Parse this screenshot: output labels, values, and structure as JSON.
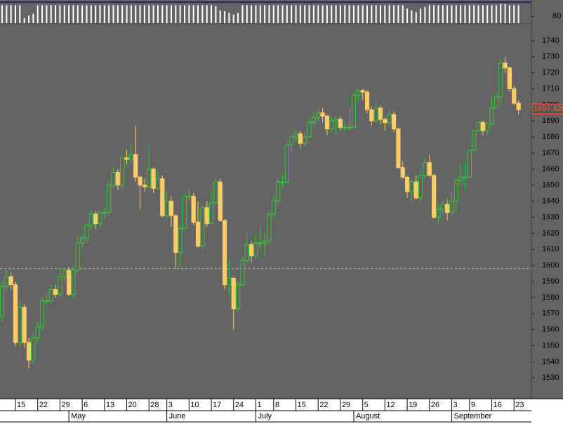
{
  "chart_data": {
    "type": "candlestick",
    "open": [
      1568,
      1587,
      1593,
      1588,
      1552,
      1574,
      1552,
      1541,
      1555,
      1562,
      1578,
      1578,
      1585,
      1582,
      1593,
      1597,
      1582,
      1597,
      1614,
      1617,
      1625,
      1632,
      1626,
      1633,
      1633,
      1650,
      1658,
      1650,
      1667,
      1666,
      1669,
      1655,
      1650,
      1649,
      1660,
      1648,
      1654,
      1631,
      1640,
      1631,
      1608,
      1623,
      1643,
      1643,
      1627,
      1612,
      1636,
      1626,
      1639,
      1652,
      1628,
      1588,
      1592,
      1573,
      1588,
      1603,
      1613,
      1606,
      1614,
      1614,
      1615,
      1632,
      1640,
      1652,
      1652,
      1675,
      1680,
      1682,
      1676,
      1680,
      1689,
      1692,
      1695,
      1693,
      1685,
      1690,
      1691,
      1686,
      1686,
      1686,
      1706,
      1709,
      1708,
      1697,
      1690,
      1698,
      1691,
      1689,
      1694,
      1685,
      1661,
      1655,
      1646,
      1652,
      1642,
      1656,
      1664,
      1656,
      1630,
      1635,
      1638,
      1633,
      1640,
      1653,
      1655,
      1655,
      1672,
      1684,
      1689,
      1684,
      1688,
      1698,
      1705,
      1726,
      1723,
      1710,
      1701
    ],
    "high": [
      1590,
      1597,
      1596,
      1590,
      1577,
      1576,
      1555,
      1558,
      1565,
      1580,
      1582,
      1588,
      1588,
      1597,
      1598,
      1599,
      1599,
      1618,
      1619,
      1626,
      1635,
      1634,
      1634,
      1636,
      1652,
      1661,
      1660,
      1668,
      1672,
      1675,
      1687,
      1656,
      1654,
      1674,
      1661,
      1659,
      1656,
      1646,
      1643,
      1632,
      1625,
      1645,
      1648,
      1645,
      1640,
      1637,
      1640,
      1646,
      1655,
      1654,
      1629,
      1604,
      1593,
      1590,
      1605,
      1621,
      1615,
      1619,
      1624,
      1620,
      1634,
      1644,
      1654,
      1656,
      1676,
      1681,
      1685,
      1684,
      1683,
      1693,
      1695,
      1698,
      1698,
      1694,
      1693,
      1693,
      1693,
      1690,
      1698,
      1708,
      1711,
      1710,
      1709,
      1699,
      1702,
      1700,
      1692,
      1697,
      1696,
      1686,
      1665,
      1656,
      1654,
      1656,
      1660,
      1667,
      1669,
      1657,
      1638,
      1641,
      1641,
      1646,
      1654,
      1663,
      1664,
      1672,
      1684,
      1689,
      1690,
      1689,
      1705,
      1707,
      1729,
      1730,
      1724,
      1712,
      1703
    ],
    "low": [
      1565,
      1584,
      1585,
      1550,
      1549,
      1549,
      1536,
      1539,
      1552,
      1560,
      1575,
      1576,
      1580,
      1580,
      1590,
      1581,
      1580,
      1596,
      1611,
      1614,
      1622,
      1623,
      1624,
      1629,
      1631,
      1648,
      1647,
      1648,
      1663,
      1664,
      1652,
      1635,
      1646,
      1648,
      1645,
      1647,
      1630,
      1629,
      1624,
      1598,
      1599,
      1622,
      1640,
      1625,
      1611,
      1610,
      1624,
      1625,
      1638,
      1627,
      1585,
      1580,
      1560,
      1571,
      1587,
      1602,
      1602,
      1604,
      1610,
      1605,
      1613,
      1630,
      1638,
      1648,
      1651,
      1670,
      1677,
      1673,
      1674,
      1679,
      1687,
      1690,
      1689,
      1681,
      1683,
      1680,
      1684,
      1683,
      1684,
      1685,
      1703,
      1703,
      1695,
      1687,
      1689,
      1688,
      1684,
      1687,
      1683,
      1660,
      1654,
      1642,
      1640,
      1641,
      1640,
      1654,
      1655,
      1629,
      1626,
      1632,
      1628,
      1631,
      1633,
      1650,
      1647,
      1655,
      1670,
      1683,
      1681,
      1681,
      1687,
      1698,
      1700,
      1720,
      1708,
      1700,
      1694
    ],
    "close": [
      1587,
      1593,
      1588,
      1552,
      1574,
      1552,
      1541,
      1555,
      1562,
      1578,
      1578,
      1585,
      1582,
      1593,
      1597,
      1582,
      1597,
      1614,
      1617,
      1625,
      1632,
      1626,
      1633,
      1633,
      1650,
      1658,
      1650,
      1667,
      1666,
      1669,
      1655,
      1650,
      1649,
      1660,
      1648,
      1654,
      1631,
      1640,
      1631,
      1608,
      1623,
      1643,
      1643,
      1627,
      1612,
      1636,
      1626,
      1639,
      1652,
      1628,
      1588,
      1592,
      1573,
      1588,
      1603,
      1613,
      1606,
      1614,
      1614,
      1615,
      1632,
      1640,
      1652,
      1652,
      1675,
      1680,
      1682,
      1676,
      1680,
      1689,
      1692,
      1695,
      1693,
      1685,
      1690,
      1691,
      1686,
      1686,
      1686,
      1706,
      1709,
      1708,
      1697,
      1690,
      1698,
      1691,
      1689,
      1694,
      1685,
      1661,
      1655,
      1646,
      1652,
      1642,
      1656,
      1664,
      1656,
      1630,
      1635,
      1638,
      1633,
      1640,
      1653,
      1655,
      1655,
      1672,
      1684,
      1689,
      1684,
      1688,
      1698,
      1705,
      1726,
      1723,
      1710,
      1701,
      1697
    ],
    "volume": [
      210,
      210,
      210,
      210,
      210,
      60,
      90,
      110,
      210,
      210,
      210,
      210,
      210,
      210,
      210,
      210,
      210,
      210,
      210,
      210,
      210,
      210,
      210,
      210,
      210,
      210,
      210,
      210,
      210,
      210,
      210,
      210,
      210,
      210,
      210,
      210,
      210,
      210,
      210,
      210,
      210,
      210,
      210,
      210,
      210,
      210,
      210,
      210,
      200,
      150,
      140,
      120,
      100,
      120,
      210,
      210,
      210,
      210,
      210,
      210,
      210,
      210,
      210,
      210,
      210,
      210,
      210,
      210,
      210,
      210,
      210,
      210,
      210,
      210,
      210,
      210,
      210,
      210,
      210,
      210,
      210,
      210,
      210,
      210,
      210,
      210,
      210,
      210,
      210,
      210,
      210,
      170,
      150,
      130,
      170,
      190,
      210,
      210,
      210,
      210,
      210,
      210,
      210,
      210,
      210,
      210,
      210,
      210,
      210,
      210,
      210,
      210,
      225,
      225,
      210,
      210,
      210
    ],
    "xlim": [
      -0.47,
      118.9
    ],
    "xticks": [
      {
        "value": 3,
        "label": "15"
      },
      {
        "value": 8,
        "label": "22"
      },
      {
        "value": 13,
        "label": "29"
      },
      {
        "value": 18,
        "label": "6"
      },
      {
        "value": 23,
        "label": "13"
      },
      {
        "value": 28,
        "label": "20"
      },
      {
        "value": 33,
        "label": "28"
      },
      {
        "value": 37,
        "label": "3"
      },
      {
        "value": 42,
        "label": "10"
      },
      {
        "value": 47,
        "label": "17"
      },
      {
        "value": 52,
        "label": "24"
      },
      {
        "value": 57,
        "label": "1"
      },
      {
        "value": 61,
        "label": "8"
      },
      {
        "value": 66,
        "label": "15"
      },
      {
        "value": 71,
        "label": "22"
      },
      {
        "value": 76,
        "label": "29"
      },
      {
        "value": 81,
        "label": "5"
      },
      {
        "value": 86,
        "label": "12"
      },
      {
        "value": 91,
        "label": "19"
      },
      {
        "value": 96,
        "label": "26"
      },
      {
        "value": 101,
        "label": "3"
      },
      {
        "value": 105,
        "label": "9"
      },
      {
        "value": 110,
        "label": "16"
      },
      {
        "value": 115,
        "label": "23"
      }
    ],
    "months": [
      {
        "value": 15,
        "label": "May"
      },
      {
        "value": 37,
        "label": "June"
      },
      {
        "value": 57,
        "label": "July"
      },
      {
        "value": 79,
        "label": "August"
      },
      {
        "value": 101,
        "label": "September"
      }
    ],
    "ylim": [
      1517,
      1750
    ],
    "yticks": [
      1530,
      1540,
      1550,
      1560,
      1570,
      1580,
      1590,
      1600,
      1610,
      1620,
      1630,
      1640,
      1650,
      1660,
      1670,
      1680,
      1690,
      1700,
      1710,
      1720,
      1730,
      1740
    ],
    "volume_ylim": [
      0,
      230
    ],
    "volume_yticks": [
      80
    ],
    "reference_line": 1598,
    "last_price": {
      "value": 1697.42,
      "label": "1697.420"
    },
    "up_color": "#33cc33",
    "down_color": "#ffcc66"
  }
}
